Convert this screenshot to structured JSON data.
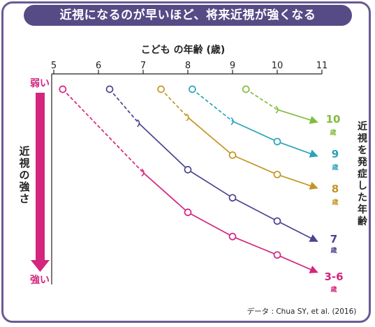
{
  "header": {
    "title": "近視になるのが早いほど、将来近視が強くなる"
  },
  "colors": {
    "frame": "#6a5a95",
    "title_bg": "#574b86",
    "magenta": "#d4257f",
    "s36": "#d4257f",
    "s7": "#4a4490",
    "s8": "#c39524",
    "s9": "#2aa3b8",
    "s10": "#82bc3c"
  },
  "chart_data": {
    "type": "line",
    "xlabel": "こども の年齢 (歳)",
    "xlim": [
      5,
      11
    ],
    "xticks": [
      "5",
      "6",
      "7",
      "8",
      "9",
      "10",
      "11"
    ],
    "y_axis": {
      "label": "近視の強さ",
      "top_label": "弱い",
      "bottom_label": "強い",
      "ylim": [
        0,
        10
      ]
    },
    "right_label": "近視を発症した年齢",
    "credit": "データ : Chua SY, et al. (2016)",
    "series": [
      {
        "key": "s36",
        "num": "3-6",
        "unit": "歳",
        "points": [
          [
            5.2,
            0.0
          ],
          [
            7.0,
            4.3
          ],
          [
            8.0,
            6.35
          ],
          [
            9.0,
            7.6
          ],
          [
            10.0,
            8.55
          ],
          [
            10.9,
            9.45
          ]
        ],
        "dashed_until": 7.0
      },
      {
        "key": "s7",
        "num": "7",
        "unit": "歳",
        "points": [
          [
            6.25,
            0.0
          ],
          [
            6.9,
            1.75
          ],
          [
            8.0,
            4.15
          ],
          [
            9.0,
            5.6
          ],
          [
            10.0,
            6.8
          ],
          [
            10.9,
            7.85
          ]
        ],
        "dashed_until": 6.9
      },
      {
        "key": "s8",
        "num": "8",
        "unit": "歳",
        "points": [
          [
            7.4,
            0.0
          ],
          [
            8.0,
            1.45
          ],
          [
            9.0,
            3.4
          ],
          [
            10.0,
            4.4
          ],
          [
            10.9,
            5.1
          ]
        ],
        "dashed_until": 8.0
      },
      {
        "key": "s9",
        "num": "9",
        "unit": "歳",
        "points": [
          [
            8.1,
            0.0
          ],
          [
            9.0,
            1.65
          ],
          [
            10.0,
            2.7
          ],
          [
            10.9,
            3.45
          ]
        ],
        "dashed_until": 9.0
      },
      {
        "key": "s10",
        "num": "10",
        "unit": "歳",
        "points": [
          [
            9.3,
            0.0
          ],
          [
            10.0,
            1.05
          ],
          [
            10.9,
            1.7
          ]
        ],
        "dashed_until": 10.0
      }
    ]
  }
}
